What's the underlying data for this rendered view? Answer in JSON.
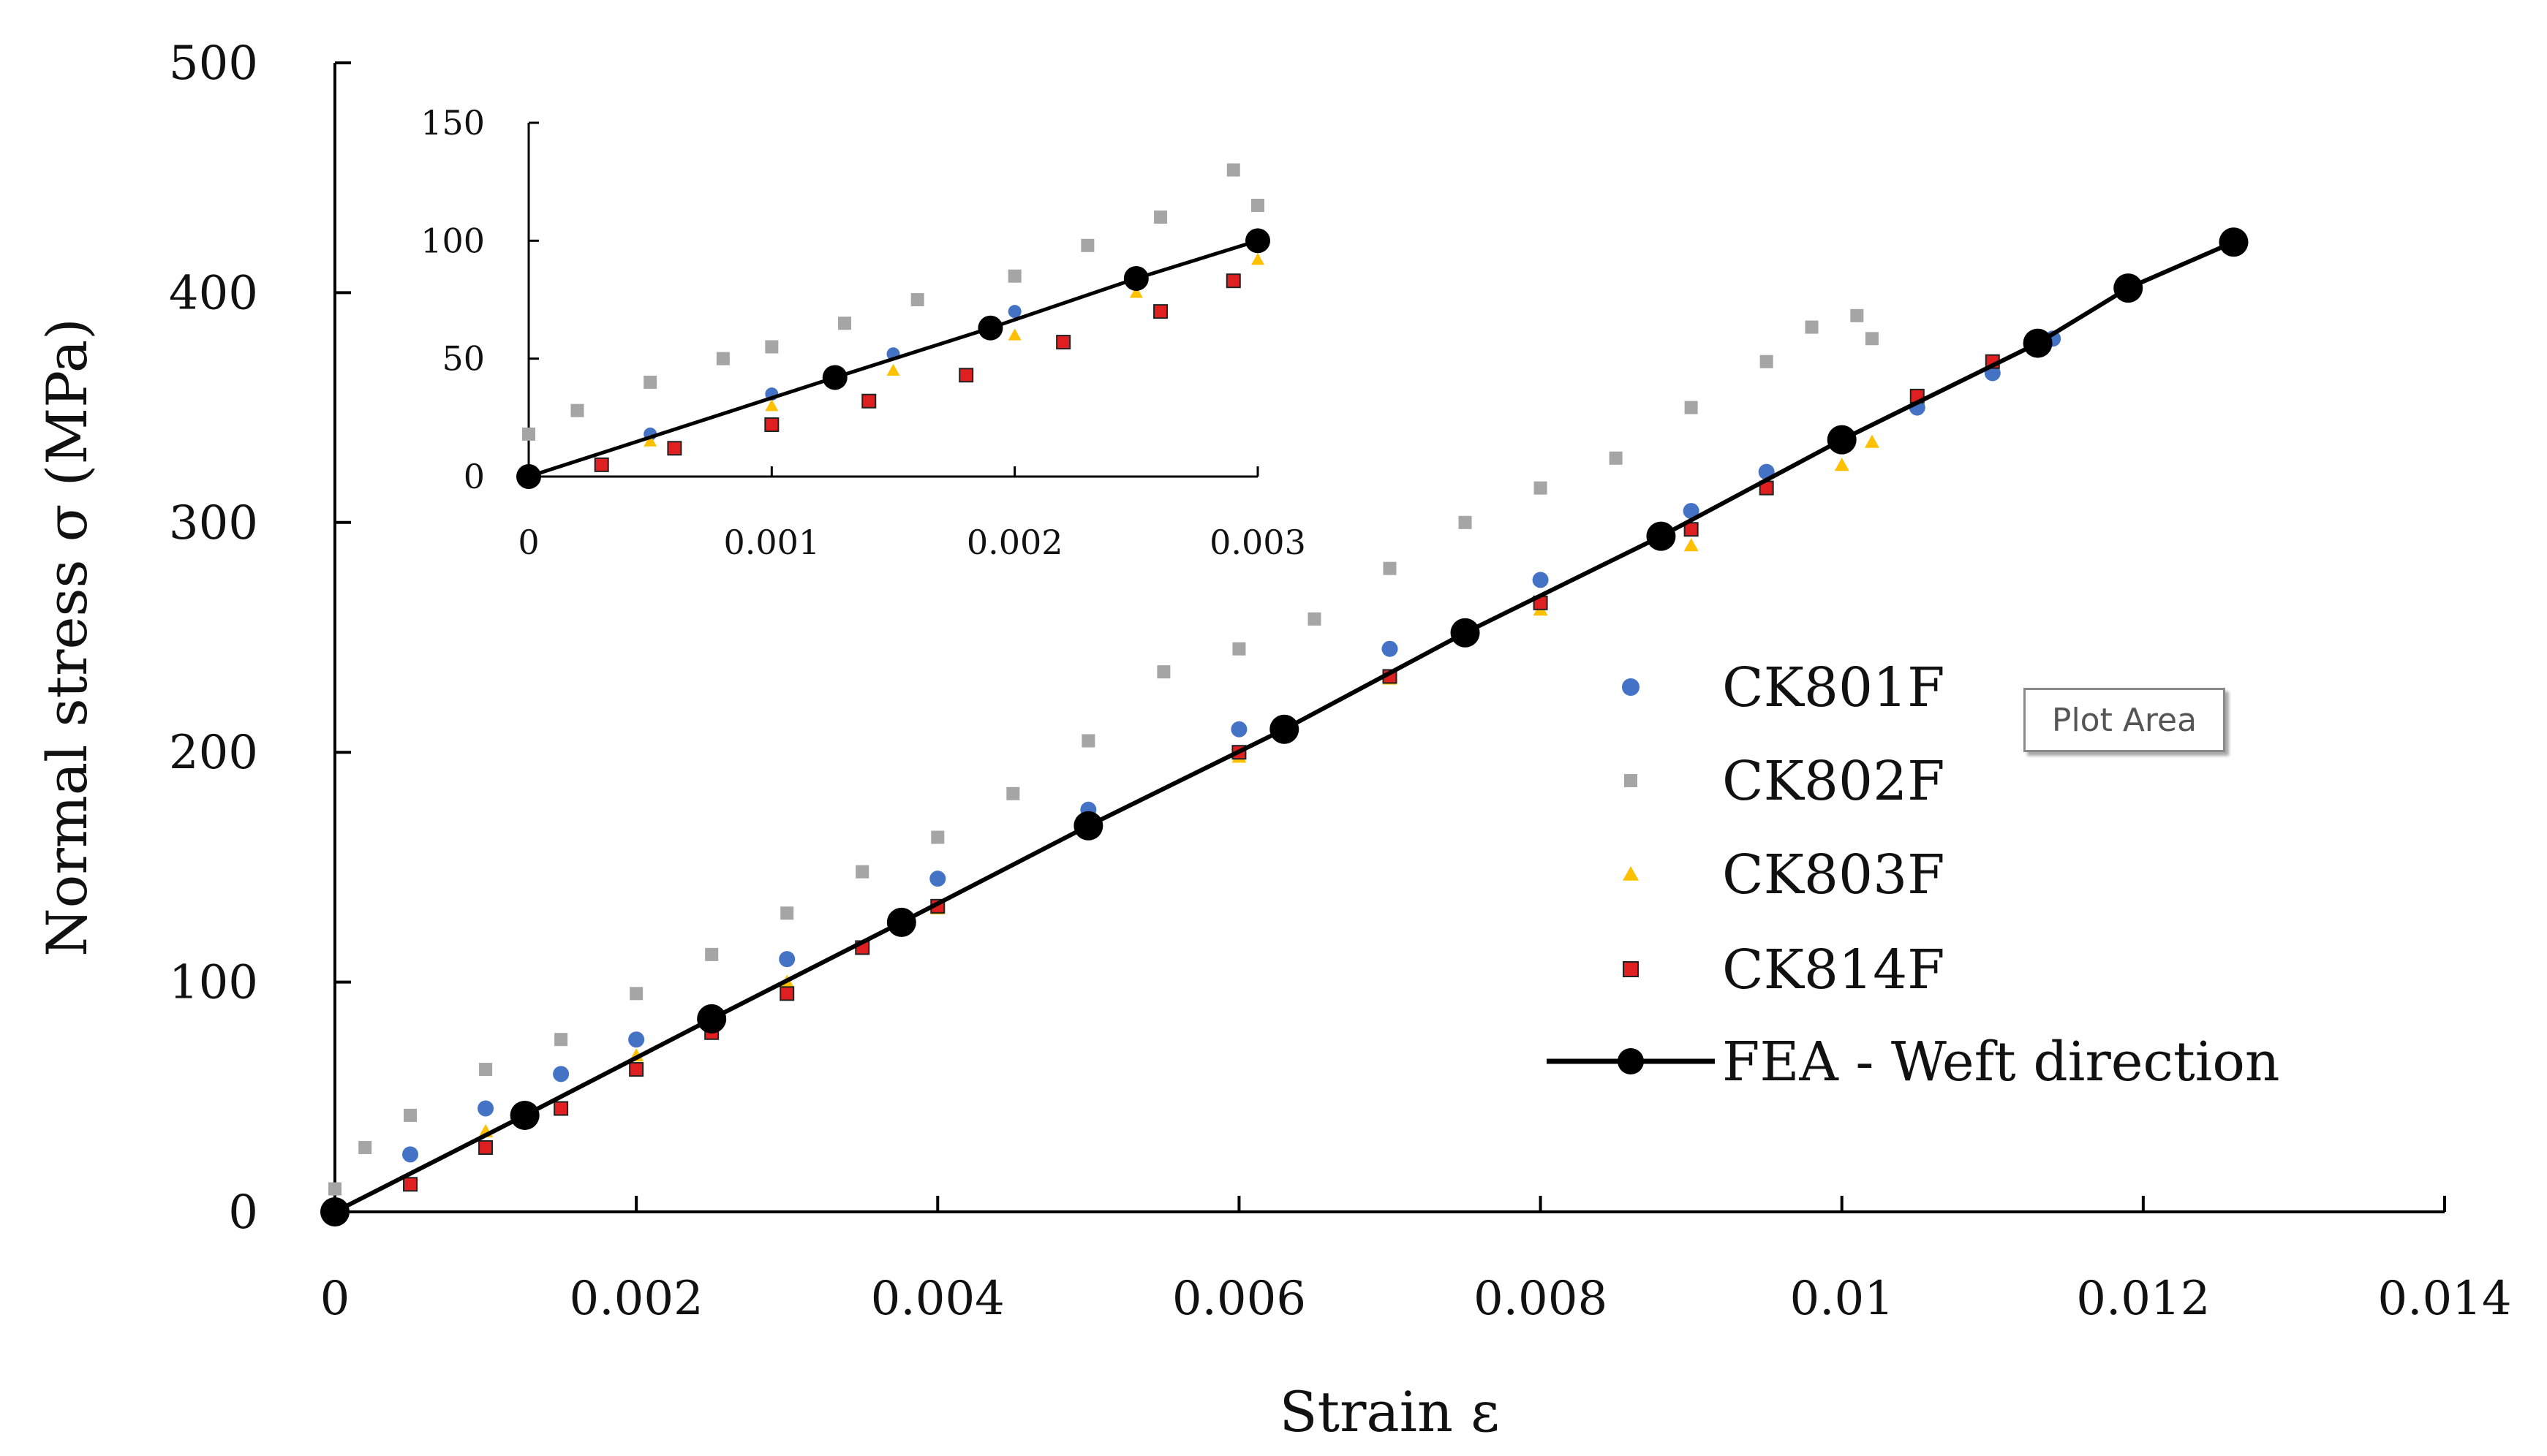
{
  "chart_data": [
    {
      "id": "main",
      "type": "scatter",
      "title": "",
      "xlabel": "Strain ε",
      "ylabel": "Normal stress σ (MPa)",
      "xlim": [
        0,
        0.014
      ],
      "ylim": [
        0,
        500
      ],
      "x_ticks": [
        0,
        0.002,
        0.004,
        0.006,
        0.008,
        0.01,
        0.012,
        0.014
      ],
      "x_tick_labels": [
        "0",
        "0.002",
        "0.004",
        "0.006",
        "0.008",
        "0.01",
        "0.012",
        "0.014"
      ],
      "y_ticks": [
        0,
        100,
        200,
        300,
        400,
        500
      ],
      "y_tick_labels": [
        "0",
        "100",
        "200",
        "300",
        "400",
        "500"
      ],
      "grid": false,
      "legend_position": "center-right",
      "series": [
        {
          "name": "CK801F",
          "marker": "circle",
          "color": "#4472C4",
          "x": [
            0,
            0.0005,
            0.001,
            0.0015,
            0.002,
            0.003,
            0.004,
            0.005,
            0.006,
            0.007,
            0.008,
            0.009,
            0.0095,
            0.01,
            0.0105,
            0.011,
            0.0113,
            0.0114
          ],
          "y": [
            0,
            25,
            45,
            60,
            75,
            110,
            145,
            175,
            210,
            245,
            275,
            305,
            322,
            337,
            350,
            365,
            376,
            380
          ]
        },
        {
          "name": "CK802F",
          "marker": "square",
          "color": "#A5A5A5",
          "x": [
            0,
            0.0002,
            0.0005,
            0.001,
            0.0015,
            0.002,
            0.0025,
            0.003,
            0.0035,
            0.004,
            0.0045,
            0.005,
            0.0055,
            0.006,
            0.0065,
            0.007,
            0.0075,
            0.008,
            0.0085,
            0.009,
            0.0095,
            0.0098,
            0.0101,
            0.0102
          ],
          "y": [
            10,
            28,
            42,
            62,
            75,
            95,
            112,
            130,
            148,
            163,
            182,
            205,
            235,
            245,
            258,
            280,
            300,
            315,
            328,
            350,
            370,
            385,
            390,
            380
          ]
        },
        {
          "name": "CK803F",
          "marker": "triangle",
          "color": "#FFC000",
          "x": [
            0,
            0.001,
            0.002,
            0.003,
            0.004,
            0.005,
            0.006,
            0.007,
            0.008,
            0.009,
            0.01,
            0.0102
          ],
          "y": [
            0,
            35,
            68,
            100,
            132,
            165,
            198,
            232,
            262,
            290,
            325,
            335
          ]
        },
        {
          "name": "CK814F",
          "marker": "square-small",
          "color": "#E02020",
          "x": [
            0,
            0.0005,
            0.001,
            0.0015,
            0.002,
            0.0025,
            0.003,
            0.0035,
            0.004,
            0.005,
            0.006,
            0.007,
            0.008,
            0.009,
            0.0095,
            0.01,
            0.0105,
            0.011
          ],
          "y": [
            0,
            12,
            28,
            45,
            62,
            78,
            95,
            115,
            133,
            168,
            200,
            233,
            265,
            297,
            315,
            335,
            355,
            370
          ]
        },
        {
          "name": "FEA - Weft direction",
          "marker": "circle-line",
          "color": "#000000",
          "x": [
            0,
            0.00126,
            0.0025,
            0.00376,
            0.005,
            0.0063,
            0.0075,
            0.0088,
            0.01,
            0.0113,
            0.0119,
            0.0126
          ],
          "y": [
            0,
            42,
            84,
            126,
            168,
            210,
            252,
            294,
            336,
            378,
            402,
            422
          ]
        }
      ]
    },
    {
      "id": "inset",
      "type": "scatter",
      "xlim": [
        0,
        0.003
      ],
      "ylim": [
        0,
        150
      ],
      "x_ticks": [
        0,
        0.001,
        0.002,
        0.003
      ],
      "x_tick_labels": [
        "0",
        "0.001",
        "0.002",
        "0.003"
      ],
      "y_ticks": [
        0,
        50,
        100,
        150
      ],
      "y_tick_labels": [
        "0",
        "50",
        "100",
        "150"
      ],
      "series": [
        {
          "name": "CK801F",
          "color": "#4472C4",
          "x": [
            0,
            0.0005,
            0.001,
            0.0015,
            0.002,
            0.0025,
            0.003
          ],
          "y": [
            0,
            18,
            35,
            52,
            70,
            86,
            100
          ]
        },
        {
          "name": "CK802F",
          "color": "#A5A5A5",
          "x": [
            0,
            0.0002,
            0.0005,
            0.0008,
            0.001,
            0.0013,
            0.0016,
            0.002,
            0.0023,
            0.0026,
            0.0029,
            0.003
          ],
          "y": [
            18,
            28,
            40,
            50,
            55,
            65,
            75,
            85,
            98,
            110,
            130,
            115
          ]
        },
        {
          "name": "CK803F",
          "color": "#FFC000",
          "x": [
            0,
            0.0005,
            0.001,
            0.0015,
            0.002,
            0.0025,
            0.003
          ],
          "y": [
            0,
            15,
            30,
            45,
            60,
            78,
            92
          ]
        },
        {
          "name": "CK814F",
          "color": "#E02020",
          "x": [
            0,
            0.0003,
            0.0006,
            0.001,
            0.0014,
            0.0018,
            0.0022,
            0.0026,
            0.0029
          ],
          "y": [
            0,
            5,
            12,
            22,
            32,
            43,
            57,
            70,
            83
          ]
        },
        {
          "name": "FEA - Weft direction",
          "color": "#000000",
          "x": [
            0,
            0.00126,
            0.0019,
            0.0025,
            0.003
          ],
          "y": [
            0,
            42,
            63,
            84,
            100
          ]
        }
      ]
    }
  ],
  "overlay": {
    "tooltip_text": "Plot Area"
  }
}
